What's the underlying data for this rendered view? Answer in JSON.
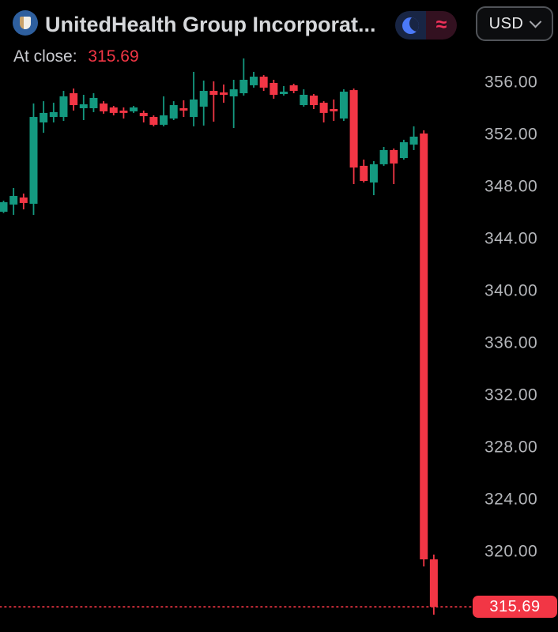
{
  "header": {
    "title": "UnitedHealth Group Incorporat...",
    "at_close_label": "At close:",
    "at_close_value": "315.69",
    "theme_toggle": {
      "left_icon": "moon-icon",
      "right_glyph": "≈"
    },
    "currency_button": {
      "label": "USD"
    }
  },
  "colors": {
    "background": "#000000",
    "up": "#149980",
    "down": "#f23645",
    "axis_text": "#b4b6ba",
    "title_text": "#d6d8db",
    "at_close_label_text": "#c9cbd0",
    "at_close_value_text": "#f23645",
    "badge_bg": "#f23645",
    "badge_text": "#ffffff",
    "logo_circle": "#2e5f9e",
    "moon_blue": "#4b79f8",
    "approx_pink": "#f0315a",
    "toggle_left_bg": "#182544",
    "toggle_right_bg": "#331120",
    "button_border": "#515459"
  },
  "chart_data": {
    "type": "candlestick",
    "title": "UnitedHealth Group Incorporat...",
    "currency": "USD",
    "last_close": 315.69,
    "ylim": [
      314.5,
      358
    ],
    "grid": false,
    "legend": "none",
    "y_axis": {
      "side": "right",
      "ticks": [
        {
          "value": 356,
          "label": "356.00"
        },
        {
          "value": 352,
          "label": "352.00"
        },
        {
          "value": 348,
          "label": "348.00"
        },
        {
          "value": 344,
          "label": "344.00"
        },
        {
          "value": 340,
          "label": "340.00"
        },
        {
          "value": 336,
          "label": "336.00"
        },
        {
          "value": 332,
          "label": "332.00"
        },
        {
          "value": 328,
          "label": "328.00"
        },
        {
          "value": 324,
          "label": "324.00"
        },
        {
          "value": 320,
          "label": "320.00"
        }
      ]
    },
    "price_line": {
      "value": 315.69,
      "label": "315.69",
      "style": "dotted"
    },
    "candles": [
      {
        "o": 346.0,
        "h": 346.85,
        "l": 345.9,
        "c": 346.73
      },
      {
        "o": 346.55,
        "h": 347.82,
        "l": 345.76,
        "c": 347.21
      },
      {
        "o": 347.09,
        "h": 347.39,
        "l": 346.18,
        "c": 346.67
      },
      {
        "o": 346.61,
        "h": 354.3,
        "l": 345.76,
        "c": 353.27
      },
      {
        "o": 352.85,
        "h": 354.48,
        "l": 352.06,
        "c": 353.58
      },
      {
        "o": 353.27,
        "h": 354.36,
        "l": 352.85,
        "c": 353.64
      },
      {
        "o": 353.27,
        "h": 355.27,
        "l": 352.97,
        "c": 354.85
      },
      {
        "o": 355.09,
        "h": 355.45,
        "l": 353.76,
        "c": 354.18
      },
      {
        "o": 353.94,
        "h": 354.97,
        "l": 353.03,
        "c": 354.24
      },
      {
        "o": 353.94,
        "h": 355.09,
        "l": 353.64,
        "c": 354.73
      },
      {
        "o": 354.3,
        "h": 354.48,
        "l": 353.52,
        "c": 353.7
      },
      {
        "o": 354.0,
        "h": 354.12,
        "l": 353.39,
        "c": 353.58
      },
      {
        "o": 353.76,
        "h": 354.0,
        "l": 353.15,
        "c": 353.58
      },
      {
        "o": 353.7,
        "h": 354.12,
        "l": 353.58,
        "c": 354.0
      },
      {
        "o": 353.58,
        "h": 353.76,
        "l": 352.85,
        "c": 353.33
      },
      {
        "o": 353.27,
        "h": 353.39,
        "l": 352.55,
        "c": 352.67
      },
      {
        "o": 352.67,
        "h": 354.85,
        "l": 352.55,
        "c": 353.39
      },
      {
        "o": 353.15,
        "h": 354.48,
        "l": 353.03,
        "c": 354.18
      },
      {
        "o": 353.94,
        "h": 354.55,
        "l": 353.27,
        "c": 353.76
      },
      {
        "o": 353.27,
        "h": 356.73,
        "l": 352.55,
        "c": 354.61
      },
      {
        "o": 354.06,
        "h": 356.06,
        "l": 352.61,
        "c": 355.27
      },
      {
        "o": 355.27,
        "h": 356.0,
        "l": 352.91,
        "c": 354.97
      },
      {
        "o": 355.15,
        "h": 355.76,
        "l": 354.36,
        "c": 354.97
      },
      {
        "o": 354.85,
        "h": 356.12,
        "l": 352.42,
        "c": 355.39
      },
      {
        "o": 355.09,
        "h": 357.76,
        "l": 354.91,
        "c": 356.12
      },
      {
        "o": 355.7,
        "h": 356.73,
        "l": 355.52,
        "c": 356.36
      },
      {
        "o": 356.36,
        "h": 356.48,
        "l": 355.27,
        "c": 355.52
      },
      {
        "o": 355.88,
        "h": 356.12,
        "l": 354.67,
        "c": 354.97
      },
      {
        "o": 355.03,
        "h": 355.64,
        "l": 354.91,
        "c": 355.21
      },
      {
        "o": 355.7,
        "h": 355.82,
        "l": 355.09,
        "c": 355.27
      },
      {
        "o": 354.18,
        "h": 355.39,
        "l": 354.06,
        "c": 354.97
      },
      {
        "o": 354.91,
        "h": 355.03,
        "l": 353.88,
        "c": 354.18
      },
      {
        "o": 354.36,
        "h": 354.48,
        "l": 352.85,
        "c": 353.58
      },
      {
        "o": 353.88,
        "h": 354.61,
        "l": 352.97,
        "c": 353.7
      },
      {
        "o": 353.15,
        "h": 355.39,
        "l": 352.97,
        "c": 355.21
      },
      {
        "o": 355.33,
        "h": 355.45,
        "l": 348.12,
        "c": 349.39
      },
      {
        "o": 349.52,
        "h": 350.0,
        "l": 348.24,
        "c": 348.36
      },
      {
        "o": 348.24,
        "h": 349.88,
        "l": 347.27,
        "c": 349.64
      },
      {
        "o": 349.64,
        "h": 350.97,
        "l": 349.52,
        "c": 350.73
      },
      {
        "o": 350.73,
        "h": 350.85,
        "l": 348.12,
        "c": 349.7
      },
      {
        "o": 350.12,
        "h": 351.52,
        "l": 350.0,
        "c": 351.33
      },
      {
        "o": 351.15,
        "h": 352.55,
        "l": 350.73,
        "c": 351.76
      },
      {
        "o": 352.0,
        "h": 352.24,
        "l": 318.79,
        "c": 319.33
      },
      {
        "o": 319.33,
        "h": 319.7,
        "l": 315.08,
        "c": 315.69
      }
    ]
  }
}
